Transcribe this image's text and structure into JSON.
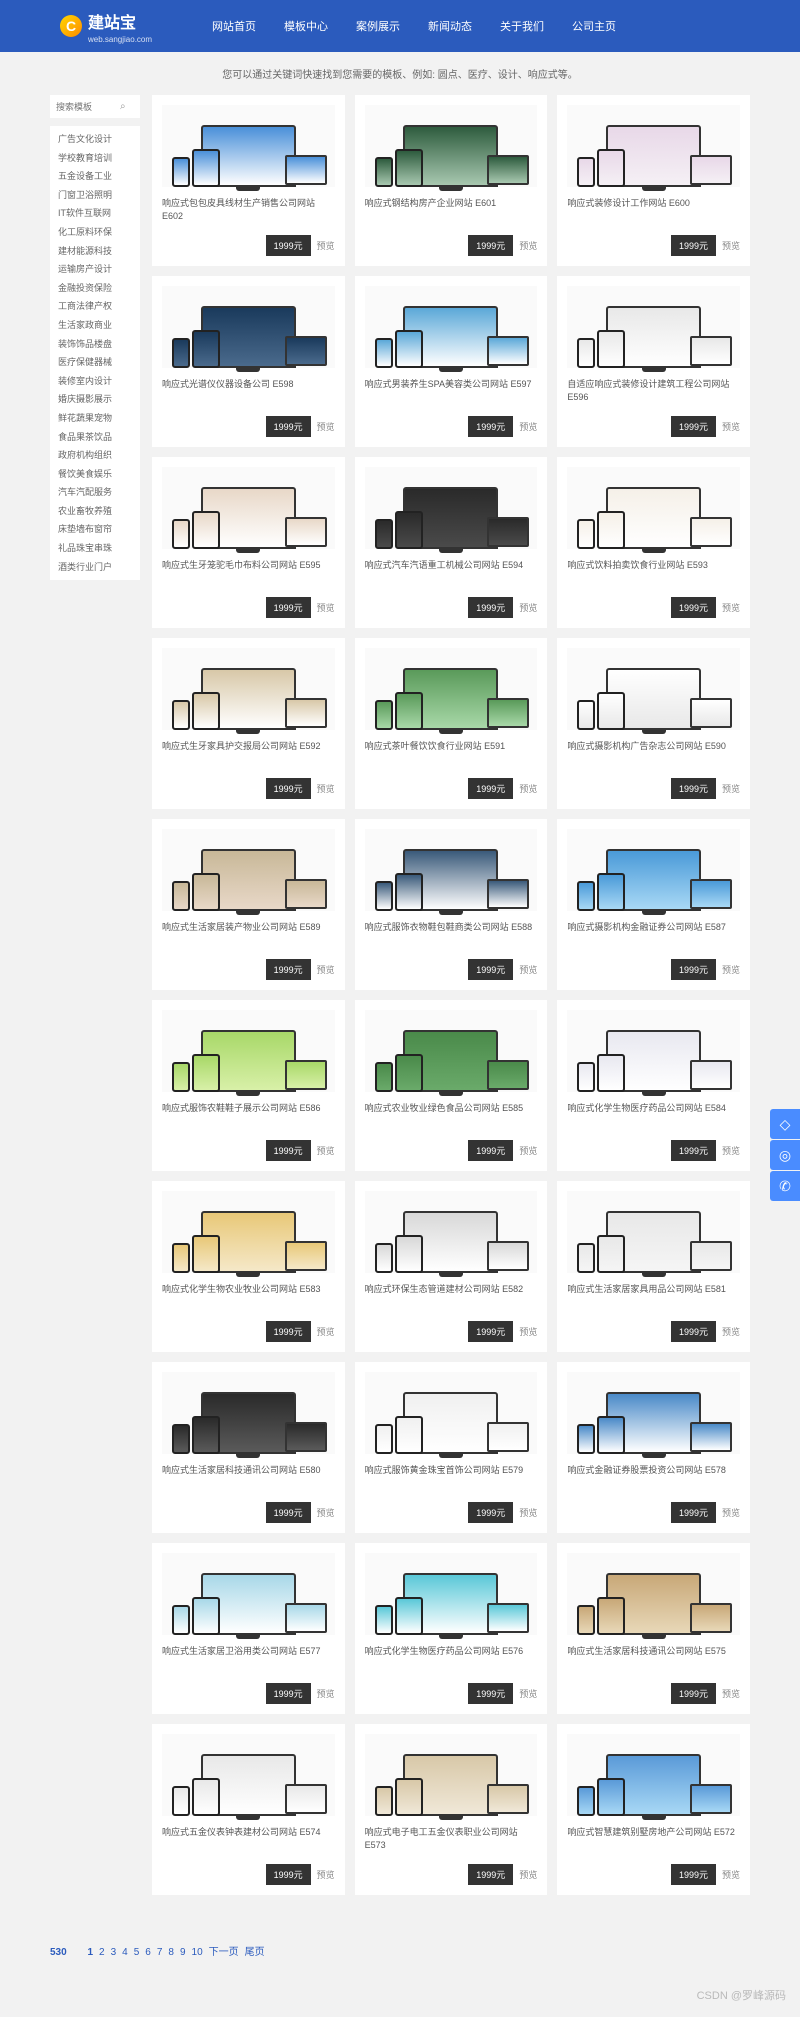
{
  "header": {
    "logo_text": "建站宝",
    "logo_sub": "web.sangjiao.com",
    "nav": [
      "网站首页",
      "模板中心",
      "案例展示",
      "新闻动态",
      "关于我们",
      "公司主页"
    ]
  },
  "hint": "您可以通过关键词快速找到您需要的模板、例如: 圆点、医疗、设计、响应式等。",
  "search": {
    "placeholder": "搜索模板"
  },
  "categories": [
    "广告文化设计",
    "学校教育培训",
    "五金设备工业",
    "门窗卫浴照明",
    "IT软件互联网",
    "化工原料环保",
    "建材能源科技",
    "运输房产设计",
    "金融投资保险",
    "工商法律产权",
    "生活家政商业",
    "装饰饰品楼盘",
    "医疗保健器械",
    "装修室内设计",
    "婚庆摄影展示",
    "鲜花蔬果宠物",
    "食品果茶饮品",
    "政府机构组织",
    "餐饮美食娱乐",
    "汽车汽配服务",
    "农业畜牧养殖",
    "床垫墙布窗帘",
    "礼品珠宝串珠",
    "酒类行业门户"
  ],
  "products": [
    {
      "title": "响应式包包皮具线材生产销售公司网站 E602",
      "price": "1999元",
      "preview": "预览"
    },
    {
      "title": "响应式钢结构房产企业网站 E601",
      "price": "1999元",
      "preview": "预览"
    },
    {
      "title": "响应式装修设计工作网站 E600",
      "price": "1999元",
      "preview": "预览"
    },
    {
      "title": "响应式光谱仪仪器设备公司 E598",
      "price": "1999元",
      "preview": "预览"
    },
    {
      "title": "响应式男装养生SPA美容类公司网站 E597",
      "price": "1999元",
      "preview": "预览"
    },
    {
      "title": "自适应响应式装修设计建筑工程公司网站 E596",
      "price": "1999元",
      "preview": "预览"
    },
    {
      "title": "响应式生牙笼驼毛巾布料公司网站 E595",
      "price": "1999元",
      "preview": "预览"
    },
    {
      "title": "响应式汽车汽语重工机械公司网站 E594",
      "price": "1999元",
      "preview": "预览"
    },
    {
      "title": "响应式饮料拍卖饮食行业网站 E593",
      "price": "1999元",
      "preview": "预览"
    },
    {
      "title": "响应式生牙家具护交报局公司网站 E592",
      "price": "1999元",
      "preview": "预览"
    },
    {
      "title": "响应式茶叶餐饮饮食行业网站 E591",
      "price": "1999元",
      "preview": "预览"
    },
    {
      "title": "响应式摄影机构广告杂志公司网站 E590",
      "price": "1999元",
      "preview": "预览"
    },
    {
      "title": "响应式生活家居装产物业公司网站 E589",
      "price": "1999元",
      "preview": "预览"
    },
    {
      "title": "响应式服饰衣物鞋包鞋商类公司网站 E588",
      "price": "1999元",
      "preview": "预览"
    },
    {
      "title": "响应式摄影机构金融证券公司网站 E587",
      "price": "1999元",
      "preview": "预览"
    },
    {
      "title": "响应式服饰农鞋鞋子展示公司网站 E586",
      "price": "1999元",
      "preview": "预览"
    },
    {
      "title": "响应式农业牧业绿色食品公司网站 E585",
      "price": "1999元",
      "preview": "预览"
    },
    {
      "title": "响应式化学生物医疗药品公司网站 E584",
      "price": "1999元",
      "preview": "预览"
    },
    {
      "title": "响应式化学生物农业牧业公司网站 E583",
      "price": "1999元",
      "preview": "预览"
    },
    {
      "title": "响应式环保生态管道建材公司网站 E582",
      "price": "1999元",
      "preview": "预览"
    },
    {
      "title": "响应式生活家居家具用品公司网站 E581",
      "price": "1999元",
      "preview": "预览"
    },
    {
      "title": "响应式生活家居科技通讯公司网站 E580",
      "price": "1999元",
      "preview": "预览"
    },
    {
      "title": "响应式服饰黄金珠宝首饰公司网站 E579",
      "price": "1999元",
      "preview": "预览"
    },
    {
      "title": "响应式金融证券股票投资公司网站 E578",
      "price": "1999元",
      "preview": "预览"
    },
    {
      "title": "响应式生活家居卫浴用类公司网站 E577",
      "price": "1999元",
      "preview": "预览"
    },
    {
      "title": "响应式化学生物医疗药品公司网站 E576",
      "price": "1999元",
      "preview": "预览"
    },
    {
      "title": "响应式生活家居科技通讯公司网站 E575",
      "price": "1999元",
      "preview": "预览"
    },
    {
      "title": "响应式五金仪表钟表建材公司网站 E574",
      "price": "1999元",
      "preview": "预览"
    },
    {
      "title": "响应式电子电工五金仪表职业公司网站 E573",
      "price": "1999元",
      "preview": "预览"
    },
    {
      "title": "响应式智慧建筑别墅房地产公司网站 E572",
      "price": "1999元",
      "preview": "预览"
    }
  ],
  "pagination": {
    "total": "530",
    "pages": [
      "1",
      "2",
      "3",
      "4",
      "5",
      "6",
      "7",
      "8",
      "9",
      "10"
    ],
    "next": "下一页",
    "last": "尾页"
  },
  "watermark": "CSDN @罗峰源码"
}
